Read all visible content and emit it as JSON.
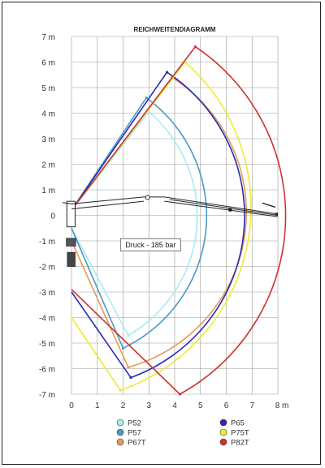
{
  "chart_data": {
    "type": "line",
    "title": "REICHWEITENDIAGRAMM",
    "xlim": [
      0,
      8
    ],
    "ylim": [
      -7,
      7
    ],
    "x_ticks": [
      "0",
      "1",
      "2",
      "3",
      "4",
      "5",
      "6",
      "7",
      "8 m"
    ],
    "y_ticks": [
      "7 m",
      "6 m",
      "5 m",
      "4 m",
      "3 m",
      "2 m",
      "1 m",
      "0",
      "-1 m",
      "-2 m",
      "-3 m",
      "-4 m",
      "-5 m",
      "-6 m",
      "-7 m"
    ],
    "grid": true,
    "legend_position": "bottom",
    "annotation": "Druck - 185 bar",
    "series": [
      {
        "name": "P52",
        "color": "#a8ecf0",
        "radius": 5.4,
        "points": [
          [
            3.0,
            4.05
          ],
          [
            2.2,
            -4.7
          ]
        ],
        "outline": [
          [
            0,
            0.2
          ],
          [
            3.0,
            4.05
          ],
          "arc",
          [
            2.2,
            -4.7
          ],
          [
            0,
            -0.5
          ]
        ]
      },
      {
        "name": "P57",
        "color": "#4a9bc4",
        "radius": 5.75,
        "points": [
          [
            2.9,
            4.6
          ],
          [
            2.0,
            -5.2
          ]
        ],
        "outline": [
          [
            0,
            0.2
          ],
          [
            2.9,
            4.6
          ],
          "arc",
          [
            2.0,
            -5.2
          ],
          [
            0,
            -0.5
          ]
        ]
      },
      {
        "name": "P67T",
        "color": "#e79a58",
        "radius": 6.3,
        "points": [
          [
            3.9,
            5.4
          ],
          [
            2.2,
            -5.95
          ]
        ],
        "outline": [
          [
            0,
            0.2
          ],
          [
            3.9,
            5.4
          ],
          "arc",
          [
            2.2,
            -5.95
          ],
          [
            0,
            -1.0
          ]
        ]
      },
      {
        "name": "P65",
        "color": "#2a2ab5",
        "radius": 6.75,
        "points": [
          [
            3.7,
            5.6
          ],
          [
            2.3,
            -6.35
          ]
        ],
        "outline": [
          [
            0,
            0.2
          ],
          [
            3.7,
            5.6
          ],
          "arc",
          [
            2.3,
            -6.35
          ],
          [
            0,
            -3.0
          ]
        ]
      },
      {
        "name": "P75T",
        "color": "#f0ea30",
        "radius": 7.6,
        "points": [
          [
            4.4,
            6.0
          ],
          [
            1.9,
            -6.85
          ]
        ],
        "outline": [
          [
            0,
            0.2
          ],
          [
            4.4,
            6.0
          ],
          "arc",
          [
            1.9,
            -6.85
          ],
          [
            0,
            -4.0
          ]
        ]
      },
      {
        "name": "P82T",
        "color": "#cc3333",
        "radius": 8.0,
        "points": [
          [
            4.8,
            6.6
          ],
          [
            4.2,
            -7.0
          ]
        ],
        "outline": [
          [
            0,
            0.2
          ],
          [
            4.8,
            6.6
          ],
          "arc",
          [
            4.2,
            -7.0
          ],
          [
            0,
            -2.9
          ]
        ]
      }
    ]
  }
}
